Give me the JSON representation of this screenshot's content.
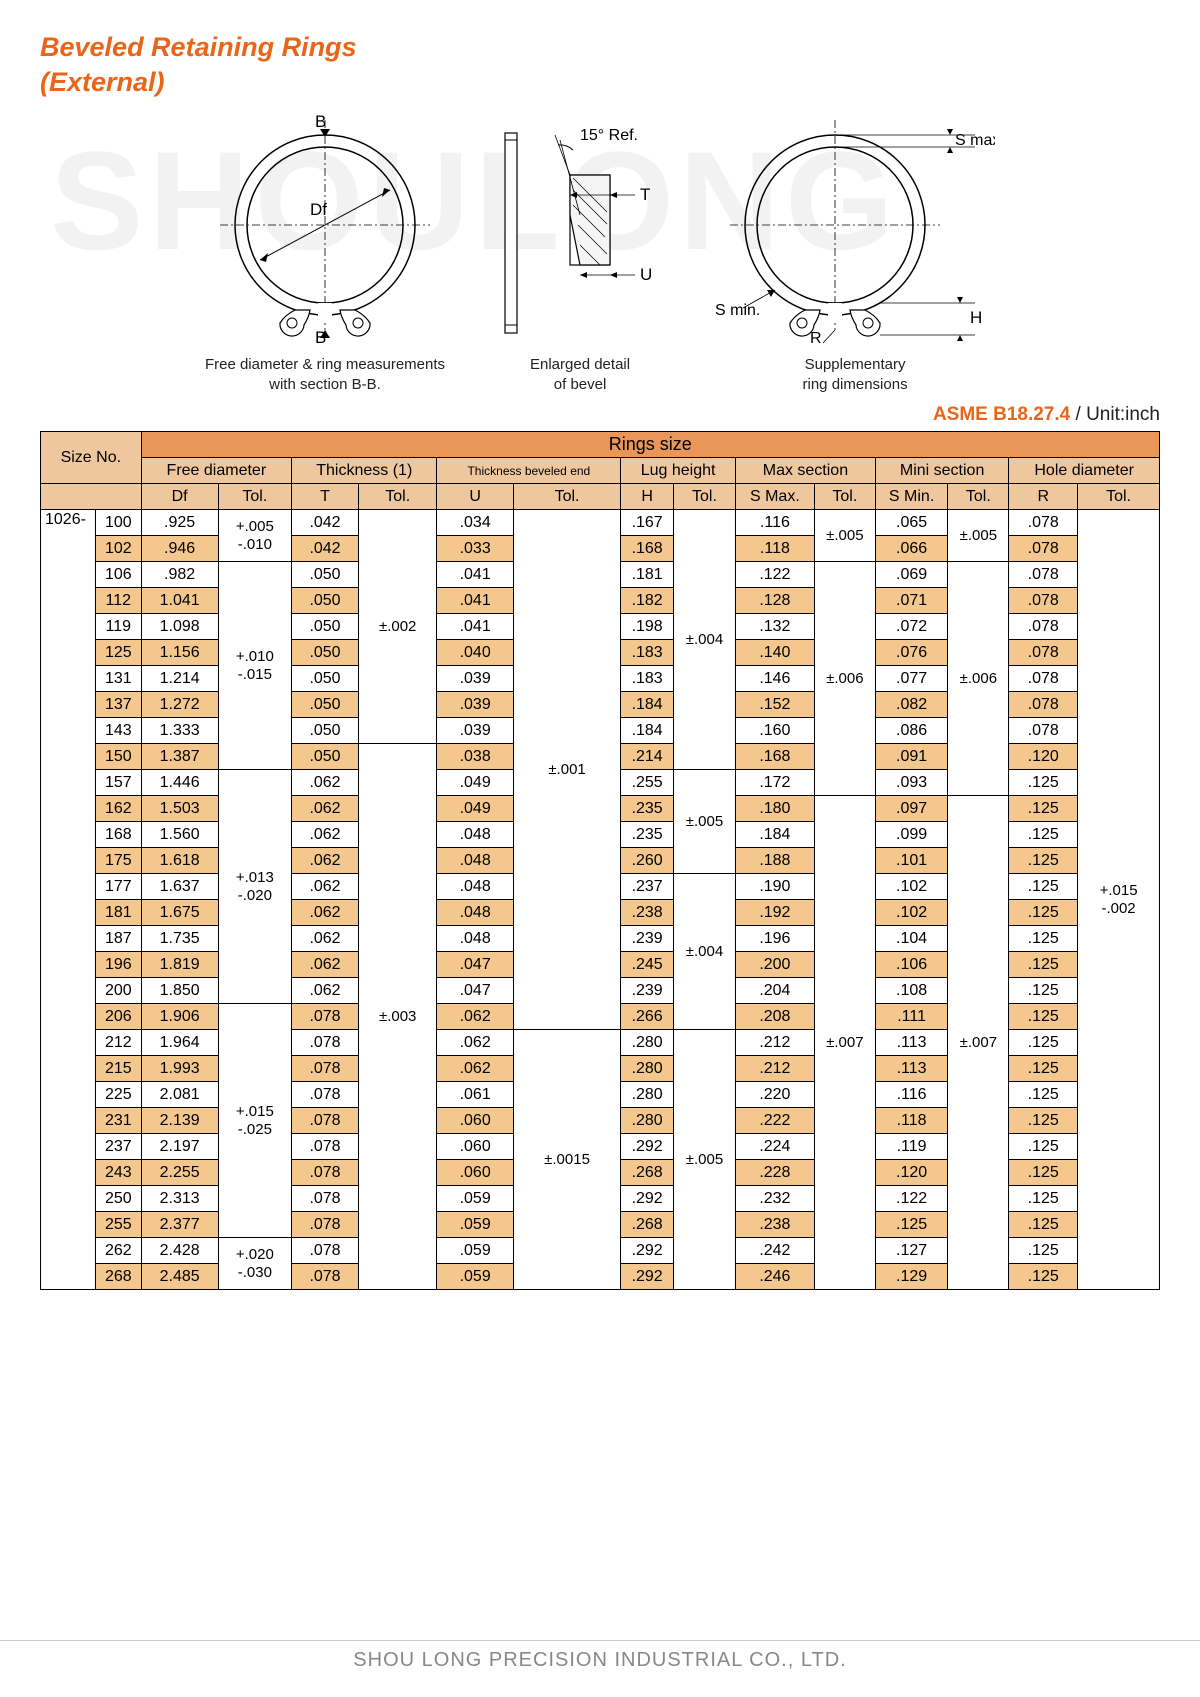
{
  "title_l1": "Beveled Retaining Rings",
  "title_l2": "(External)",
  "watermark": "SHOULONG",
  "standard": "ASME B18.27.4",
  "unit_label": " / Unit:inch",
  "footer": "SHOU LONG PRECISION INDUSTRIAL CO., LTD.",
  "diag": {
    "b_top": "B",
    "b_bot": "B",
    "df": "Df",
    "cap1_l1": "Free diameter & ring measurements",
    "cap1_l2": "with section B-B.",
    "angle": "15° Ref.",
    "t": "T",
    "u": "U",
    "cap2_l1": "Enlarged detail",
    "cap2_l2": "of bevel",
    "smax": "S max.",
    "smin": "S min.",
    "h": "H",
    "r": "R",
    "cap3_l1": "Supplementary",
    "cap3_l2": "ring dimensions"
  },
  "headers": {
    "size_no": "Size No.",
    "rings_size": "Rings size",
    "groups": [
      "Free diameter",
      "Thickness (1)",
      "Thickness beveled end",
      "Lug height",
      "Max section",
      "Mini section",
      "Hole diameter"
    ],
    "syms": [
      "Df",
      "Tol.",
      "T",
      "Tol.",
      "U",
      "Tol.",
      "H",
      "Tol.",
      "S Max.",
      "Tol.",
      "S Min.",
      "Tol.",
      "R",
      "Tol."
    ]
  },
  "prefix": "1026-",
  "rows": [
    {
      "s": false,
      "sz": "100",
      "df": ".925",
      "t": ".042",
      "u": ".034",
      "h": ".167",
      "smax": ".116",
      "smin": ".065",
      "r": ".078"
    },
    {
      "s": true,
      "sz": "102",
      "df": ".946",
      "t": ".042",
      "u": ".033",
      "h": ".168",
      "smax": ".118",
      "smin": ".066",
      "r": ".078"
    },
    {
      "s": false,
      "sz": "106",
      "df": ".982",
      "t": ".050",
      "u": ".041",
      "h": ".181",
      "smax": ".122",
      "smin": ".069",
      "r": ".078"
    },
    {
      "s": true,
      "sz": "112",
      "df": "1.041",
      "t": ".050",
      "u": ".041",
      "h": ".182",
      "smax": ".128",
      "smin": ".071",
      "r": ".078"
    },
    {
      "s": false,
      "sz": "119",
      "df": "1.098",
      "t": ".050",
      "u": ".041",
      "h": ".198",
      "smax": ".132",
      "smin": ".072",
      "r": ".078"
    },
    {
      "s": true,
      "sz": "125",
      "df": "1.156",
      "t": ".050",
      "u": ".040",
      "h": ".183",
      "smax": ".140",
      "smin": ".076",
      "r": ".078"
    },
    {
      "s": false,
      "sz": "131",
      "df": "1.214",
      "t": ".050",
      "u": ".039",
      "h": ".183",
      "smax": ".146",
      "smin": ".077",
      "r": ".078"
    },
    {
      "s": true,
      "sz": "137",
      "df": "1.272",
      "t": ".050",
      "u": ".039",
      "h": ".184",
      "smax": ".152",
      "smin": ".082",
      "r": ".078"
    },
    {
      "s": false,
      "sz": "143",
      "df": "1.333",
      "t": ".050",
      "u": ".039",
      "h": ".184",
      "smax": ".160",
      "smin": ".086",
      "r": ".078"
    },
    {
      "s": true,
      "sz": "150",
      "df": "1.387",
      "t": ".050",
      "u": ".038",
      "h": ".214",
      "smax": ".168",
      "smin": ".091",
      "r": ".120"
    },
    {
      "s": false,
      "sz": "157",
      "df": "1.446",
      "t": ".062",
      "u": ".049",
      "h": ".255",
      "smax": ".172",
      "smin": ".093",
      "r": ".125"
    },
    {
      "s": true,
      "sz": "162",
      "df": "1.503",
      "t": ".062",
      "u": ".049",
      "h": ".235",
      "smax": ".180",
      "smin": ".097",
      "r": ".125"
    },
    {
      "s": false,
      "sz": "168",
      "df": "1.560",
      "t": ".062",
      "u": ".048",
      "h": ".235",
      "smax": ".184",
      "smin": ".099",
      "r": ".125"
    },
    {
      "s": true,
      "sz": "175",
      "df": "1.618",
      "t": ".062",
      "u": ".048",
      "h": ".260",
      "smax": ".188",
      "smin": ".101",
      "r": ".125"
    },
    {
      "s": false,
      "sz": "177",
      "df": "1.637",
      "t": ".062",
      "u": ".048",
      "h": ".237",
      "smax": ".190",
      "smin": ".102",
      "r": ".125"
    },
    {
      "s": true,
      "sz": "181",
      "df": "1.675",
      "t": ".062",
      "u": ".048",
      "h": ".238",
      "smax": ".192",
      "smin": ".102",
      "r": ".125"
    },
    {
      "s": false,
      "sz": "187",
      "df": "1.735",
      "t": ".062",
      "u": ".048",
      "h": ".239",
      "smax": ".196",
      "smin": ".104",
      "r": ".125"
    },
    {
      "s": true,
      "sz": "196",
      "df": "1.819",
      "t": ".062",
      "u": ".047",
      "h": ".245",
      "smax": ".200",
      "smin": ".106",
      "r": ".125"
    },
    {
      "s": false,
      "sz": "200",
      "df": "1.850",
      "t": ".062",
      "u": ".047",
      "h": ".239",
      "smax": ".204",
      "smin": ".108",
      "r": ".125"
    },
    {
      "s": true,
      "sz": "206",
      "df": "1.906",
      "t": ".078",
      "u": ".062",
      "h": ".266",
      "smax": ".208",
      "smin": ".111",
      "r": ".125"
    },
    {
      "s": false,
      "sz": "212",
      "df": "1.964",
      "t": ".078",
      "u": ".062",
      "h": ".280",
      "smax": ".212",
      "smin": ".113",
      "r": ".125"
    },
    {
      "s": true,
      "sz": "215",
      "df": "1.993",
      "t": ".078",
      "u": ".062",
      "h": ".280",
      "smax": ".212",
      "smin": ".113",
      "r": ".125"
    },
    {
      "s": false,
      "sz": "225",
      "df": "2.081",
      "t": ".078",
      "u": ".061",
      "h": ".280",
      "smax": ".220",
      "smin": ".116",
      "r": ".125"
    },
    {
      "s": true,
      "sz": "231",
      "df": "2.139",
      "t": ".078",
      "u": ".060",
      "h": ".280",
      "smax": ".222",
      "smin": ".118",
      "r": ".125"
    },
    {
      "s": false,
      "sz": "237",
      "df": "2.197",
      "t": ".078",
      "u": ".060",
      "h": ".292",
      "smax": ".224",
      "smin": ".119",
      "r": ".125"
    },
    {
      "s": true,
      "sz": "243",
      "df": "2.255",
      "t": ".078",
      "u": ".060",
      "h": ".268",
      "smax": ".228",
      "smin": ".120",
      "r": ".125"
    },
    {
      "s": false,
      "sz": "250",
      "df": "2.313",
      "t": ".078",
      "u": ".059",
      "h": ".292",
      "smax": ".232",
      "smin": ".122",
      "r": ".125"
    },
    {
      "s": true,
      "sz": "255",
      "df": "2.377",
      "t": ".078",
      "u": ".059",
      "h": ".268",
      "smax": ".238",
      "smin": ".125",
      "r": ".125"
    },
    {
      "s": false,
      "sz": "262",
      "df": "2.428",
      "t": ".078",
      "u": ".059",
      "h": ".292",
      "smax": ".242",
      "smin": ".127",
      "r": ".125"
    },
    {
      "s": true,
      "sz": "268",
      "df": "2.485",
      "t": ".078",
      "u": ".059",
      "h": ".292",
      "smax": ".246",
      "smin": ".129",
      "r": ".125"
    }
  ],
  "tol": {
    "df": [
      {
        "span": 2,
        "txt": "+.005\n-.010"
      },
      {
        "span": 8,
        "txt": "+.010\n-.015"
      },
      {
        "span": 9,
        "txt": "+.013\n-.020"
      },
      {
        "span": 9,
        "txt": "+.015\n-.025"
      },
      {
        "span": 2,
        "txt": "+.020\n-.030"
      }
    ],
    "t": [
      {
        "span": 9,
        "txt": "±.002"
      },
      {
        "span": 21,
        "txt": "±.003"
      }
    ],
    "u": [
      {
        "span": 20,
        "txt": "±.001"
      },
      {
        "span": 10,
        "txt": "±.0015"
      }
    ],
    "h": [
      {
        "span": 10,
        "txt": "±.004"
      },
      {
        "span": 4,
        "txt": "±.005"
      },
      {
        "span": 6,
        "txt": "±.004"
      },
      {
        "span": 10,
        "txt": "±.005"
      }
    ],
    "smax": [
      {
        "span": 2,
        "txt": "±.005"
      },
      {
        "span": 9,
        "txt": "±.006"
      },
      {
        "span": 19,
        "txt": "±.007"
      }
    ],
    "smin": [
      {
        "span": 2,
        "txt": "±.005"
      },
      {
        "span": 9,
        "txt": "±.006"
      },
      {
        "span": 19,
        "txt": "±.007"
      }
    ],
    "r": [
      {
        "span": 30,
        "txt": "+.015\n-.002"
      }
    ]
  }
}
